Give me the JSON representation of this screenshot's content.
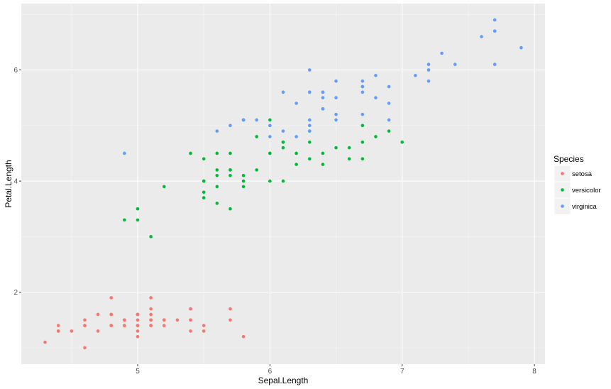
{
  "chart_data": {
    "type": "scatter",
    "title": "",
    "xlabel": "Sepal.Length",
    "ylabel": "Petal.Length",
    "xlim": [
      4.12,
      8.08
    ],
    "ylim": [
      0.705,
      7.195
    ],
    "x_ticks": [
      5,
      6,
      7,
      8
    ],
    "y_ticks": [
      2,
      4,
      6
    ],
    "grid": true,
    "legend": {
      "title": "Species",
      "placement": "right"
    },
    "series": [
      {
        "name": "setosa",
        "color": "#F8766D",
        "points": [
          [
            5.1,
            1.4
          ],
          [
            4.9,
            1.4
          ],
          [
            4.7,
            1.3
          ],
          [
            4.6,
            1.5
          ],
          [
            5.0,
            1.4
          ],
          [
            5.4,
            1.7
          ],
          [
            4.6,
            1.4
          ],
          [
            5.0,
            1.5
          ],
          [
            4.4,
            1.4
          ],
          [
            4.9,
            1.5
          ],
          [
            5.4,
            1.5
          ],
          [
            4.8,
            1.6
          ],
          [
            4.8,
            1.4
          ],
          [
            4.3,
            1.1
          ],
          [
            5.8,
            1.2
          ],
          [
            5.7,
            1.5
          ],
          [
            5.4,
            1.3
          ],
          [
            5.1,
            1.4
          ],
          [
            5.7,
            1.7
          ],
          [
            5.1,
            1.5
          ],
          [
            5.4,
            1.7
          ],
          [
            5.1,
            1.5
          ],
          [
            4.6,
            1.0
          ],
          [
            5.1,
            1.7
          ],
          [
            4.8,
            1.9
          ],
          [
            5.0,
            1.6
          ],
          [
            5.0,
            1.6
          ],
          [
            5.2,
            1.5
          ],
          [
            5.2,
            1.4
          ],
          [
            4.7,
            1.6
          ],
          [
            4.8,
            1.6
          ],
          [
            5.4,
            1.5
          ],
          [
            5.2,
            1.5
          ],
          [
            5.5,
            1.4
          ],
          [
            4.9,
            1.5
          ],
          [
            5.0,
            1.2
          ],
          [
            5.5,
            1.3
          ],
          [
            4.9,
            1.4
          ],
          [
            4.4,
            1.3
          ],
          [
            5.1,
            1.5
          ],
          [
            5.0,
            1.3
          ],
          [
            4.5,
            1.3
          ],
          [
            4.4,
            1.3
          ],
          [
            5.0,
            1.6
          ],
          [
            5.1,
            1.9
          ],
          [
            4.8,
            1.4
          ],
          [
            5.1,
            1.6
          ],
          [
            4.6,
            1.4
          ],
          [
            5.3,
            1.5
          ],
          [
            5.0,
            1.4
          ]
        ]
      },
      {
        "name": "versicolor",
        "color": "#00BA38",
        "points": [
          [
            7.0,
            4.7
          ],
          [
            6.4,
            4.5
          ],
          [
            6.9,
            4.9
          ],
          [
            5.5,
            4.0
          ],
          [
            6.5,
            4.6
          ],
          [
            5.7,
            4.5
          ],
          [
            6.3,
            4.7
          ],
          [
            4.9,
            3.3
          ],
          [
            6.6,
            4.6
          ],
          [
            5.2,
            3.9
          ],
          [
            5.0,
            3.5
          ],
          [
            5.9,
            4.2
          ],
          [
            6.0,
            4.0
          ],
          [
            6.1,
            4.7
          ],
          [
            5.6,
            3.6
          ],
          [
            6.7,
            4.4
          ],
          [
            5.6,
            4.5
          ],
          [
            5.8,
            4.1
          ],
          [
            6.2,
            4.5
          ],
          [
            5.6,
            3.9
          ],
          [
            5.9,
            4.8
          ],
          [
            6.1,
            4.0
          ],
          [
            6.3,
            4.9
          ],
          [
            6.1,
            4.7
          ],
          [
            6.4,
            4.3
          ],
          [
            6.6,
            4.4
          ],
          [
            6.8,
            4.8
          ],
          [
            6.7,
            5.0
          ],
          [
            6.0,
            4.5
          ],
          [
            5.7,
            3.5
          ],
          [
            5.5,
            3.8
          ],
          [
            5.5,
            3.7
          ],
          [
            5.8,
            3.9
          ],
          [
            6.0,
            5.1
          ],
          [
            5.4,
            4.5
          ],
          [
            6.0,
            4.5
          ],
          [
            6.7,
            4.7
          ],
          [
            6.3,
            4.4
          ],
          [
            5.6,
            4.1
          ],
          [
            5.5,
            4.0
          ],
          [
            5.5,
            4.4
          ],
          [
            6.1,
            4.6
          ],
          [
            5.8,
            4.0
          ],
          [
            5.0,
            3.3
          ],
          [
            5.6,
            4.2
          ],
          [
            5.7,
            4.2
          ],
          [
            5.7,
            4.2
          ],
          [
            6.2,
            4.3
          ],
          [
            5.1,
            3.0
          ],
          [
            5.7,
            4.1
          ]
        ]
      },
      {
        "name": "virginica",
        "color": "#619CFF",
        "points": [
          [
            6.3,
            6.0
          ],
          [
            5.8,
            5.1
          ],
          [
            7.1,
            5.9
          ],
          [
            6.3,
            5.6
          ],
          [
            6.5,
            5.8
          ],
          [
            7.6,
            6.6
          ],
          [
            4.9,
            4.5
          ],
          [
            7.3,
            6.3
          ],
          [
            6.7,
            5.8
          ],
          [
            7.2,
            6.1
          ],
          [
            6.5,
            5.1
          ],
          [
            6.4,
            5.3
          ],
          [
            6.8,
            5.5
          ],
          [
            5.7,
            5.0
          ],
          [
            5.8,
            5.1
          ],
          [
            6.4,
            5.3
          ],
          [
            6.5,
            5.5
          ],
          [
            7.7,
            6.7
          ],
          [
            7.7,
            6.9
          ],
          [
            6.0,
            5.0
          ],
          [
            6.9,
            5.7
          ],
          [
            5.6,
            4.9
          ],
          [
            7.7,
            6.7
          ],
          [
            6.3,
            4.9
          ],
          [
            6.7,
            5.7
          ],
          [
            7.2,
            6.0
          ],
          [
            6.2,
            4.8
          ],
          [
            6.1,
            4.9
          ],
          [
            6.4,
            5.6
          ],
          [
            7.2,
            5.8
          ],
          [
            7.4,
            6.1
          ],
          [
            7.9,
            6.4
          ],
          [
            6.4,
            5.6
          ],
          [
            6.3,
            5.1
          ],
          [
            6.1,
            5.6
          ],
          [
            7.7,
            6.1
          ],
          [
            6.3,
            5.6
          ],
          [
            6.4,
            5.5
          ],
          [
            6.0,
            4.8
          ],
          [
            6.9,
            5.4
          ],
          [
            6.7,
            5.6
          ],
          [
            6.9,
            5.1
          ],
          [
            5.8,
            5.1
          ],
          [
            6.8,
            5.9
          ],
          [
            6.7,
            5.7
          ],
          [
            6.7,
            5.2
          ],
          [
            6.3,
            5.0
          ],
          [
            6.5,
            5.2
          ],
          [
            6.2,
            5.4
          ],
          [
            5.9,
            5.1
          ]
        ]
      }
    ]
  }
}
